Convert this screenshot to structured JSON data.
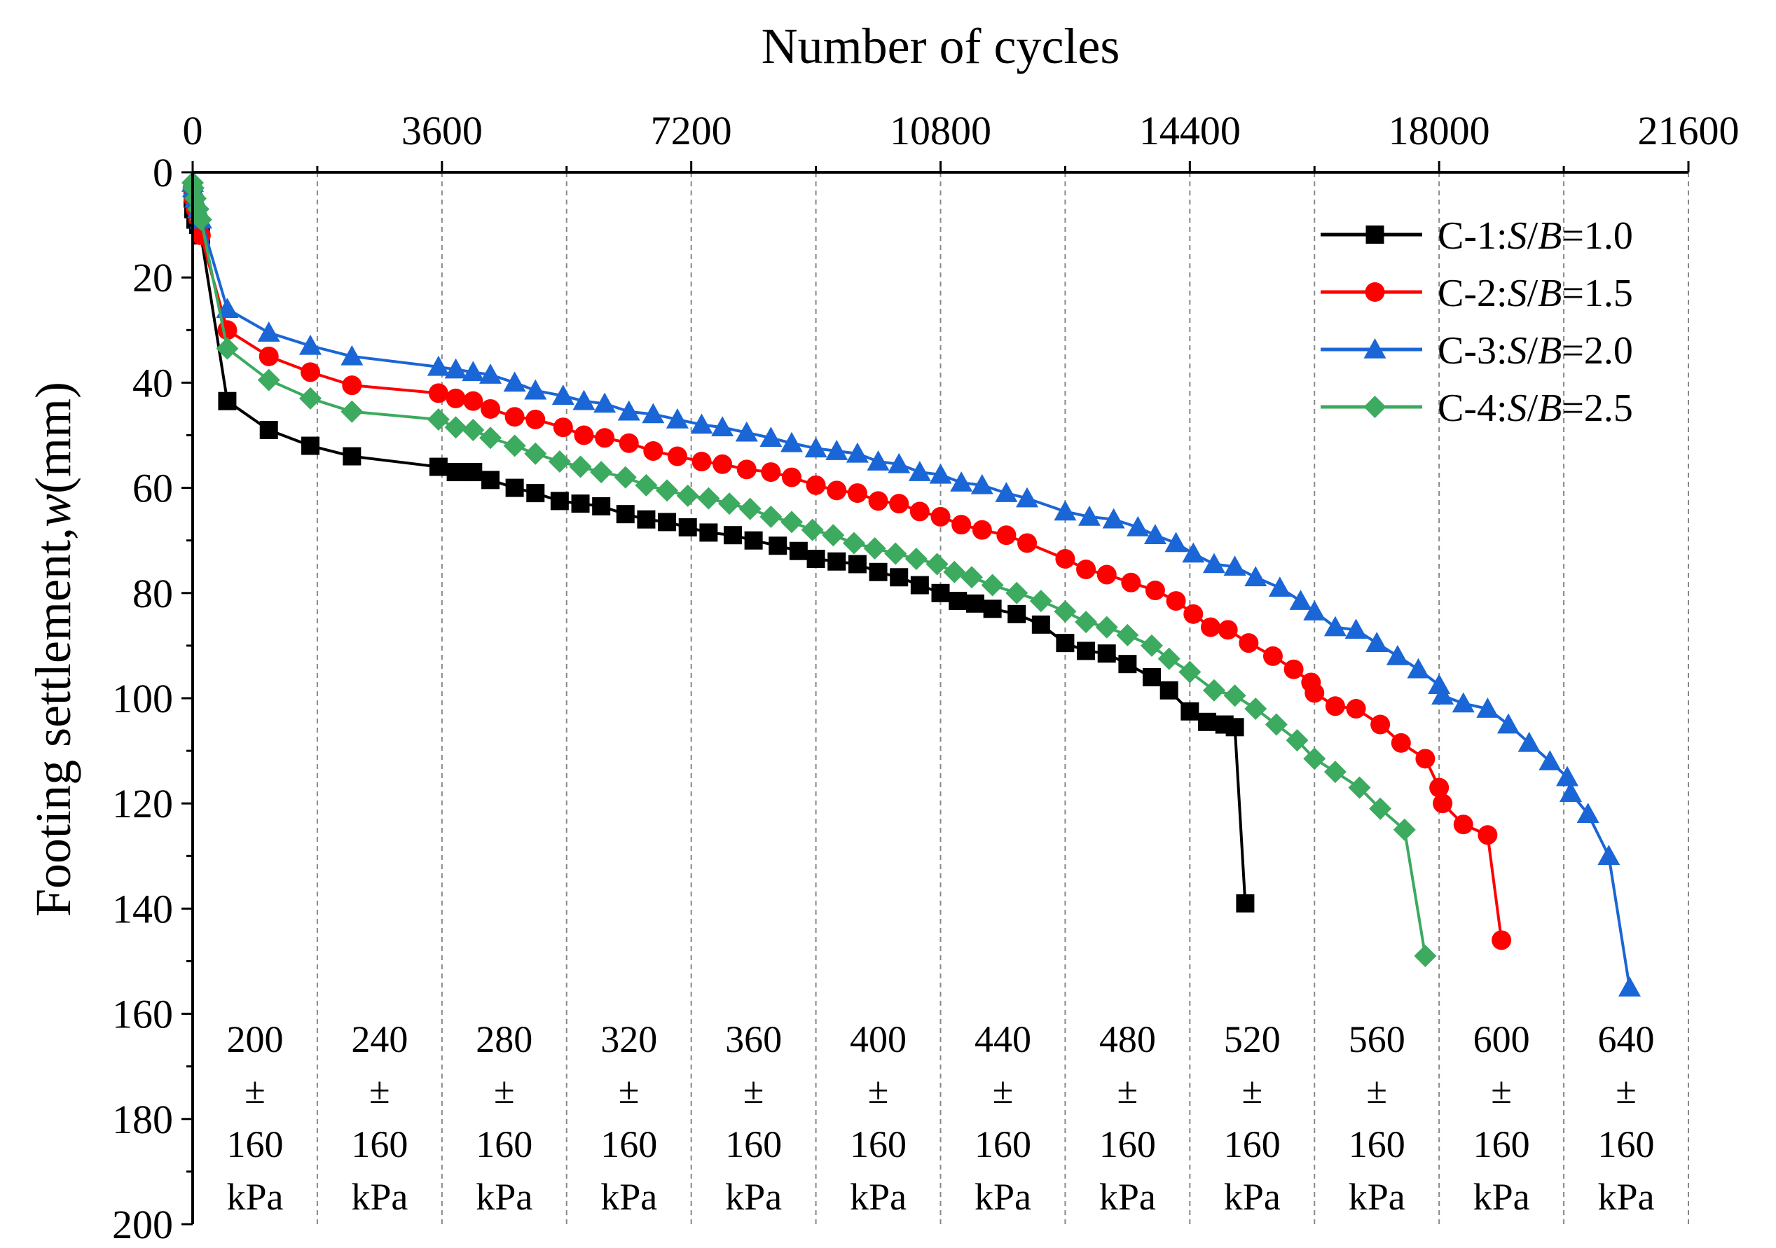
{
  "chart_data": {
    "type": "line",
    "xlabel": "Number of cycles",
    "ylabel_main": "Footing settlement,",
    "ylabel_var": "w",
    "ylabel_unit": "(mm)",
    "xlim": [
      0,
      21600
    ],
    "ylim": [
      0,
      200
    ],
    "y_inverted": true,
    "x_axis_position": "top",
    "xticks": [
      0,
      3600,
      7200,
      10800,
      14400,
      18000,
      21600
    ],
    "yticks": [
      0,
      20,
      40,
      60,
      80,
      100,
      120,
      140,
      160,
      180,
      200
    ],
    "stage_boundaries": [
      1800,
      3600,
      5400,
      7200,
      9000,
      10800,
      12600,
      14400,
      16200,
      18000,
      19800,
      21600
    ],
    "legend_position": "top-right",
    "series": [
      {
        "name": "C-1",
        "ratio_label": "S/B",
        "ratio_value": "1.0",
        "color": "#000000",
        "marker": "square",
        "x": [
          0,
          10,
          40,
          80,
          120,
          500,
          1100,
          1700,
          2300,
          3550,
          3800,
          4050,
          4300,
          4650,
          4950,
          5300,
          5600,
          5900,
          6250,
          6550,
          6850,
          7150,
          7450,
          7800,
          8100,
          8450,
          8750,
          9000,
          9300,
          9600,
          9900,
          10200,
          10500,
          10800,
          11050,
          11300,
          11550,
          11900,
          12250,
          12600,
          12900,
          13200,
          13500,
          13850,
          14100,
          14400,
          14650,
          14900,
          15050,
          15200
        ],
        "y": [
          5,
          7,
          9,
          10,
          12,
          43.5,
          49,
          52,
          54,
          56,
          57,
          57,
          58.5,
          60,
          61,
          62.5,
          63,
          63.5,
          65,
          66,
          66.5,
          67.5,
          68.5,
          69,
          70,
          71,
          72,
          73.5,
          74,
          74.5,
          76,
          77,
          78.5,
          80,
          81.5,
          82,
          83,
          84,
          86,
          89.5,
          91,
          91.5,
          93.5,
          96,
          98.5,
          102.5,
          104.5,
          105,
          105.5,
          139
        ]
      },
      {
        "name": "C-2",
        "ratio_label": "S/B",
        "ratio_value": "1.5",
        "color": "#ff0000",
        "marker": "circle",
        "x": [
          0,
          10,
          40,
          80,
          120,
          500,
          1100,
          1700,
          2300,
          3550,
          3800,
          4050,
          4300,
          4650,
          4950,
          5350,
          5650,
          5950,
          6300,
          6650,
          7000,
          7350,
          7650,
          8000,
          8350,
          8650,
          9000,
          9300,
          9600,
          9900,
          10200,
          10500,
          10800,
          11100,
          11400,
          11750,
          12050,
          12600,
          12900,
          13200,
          13550,
          13900,
          14200,
          14450,
          14700,
          14950,
          15250,
          15600,
          15900,
          16150,
          16200,
          16500,
          16800,
          17150,
          17450,
          17800,
          18000,
          18050,
          18350,
          18700,
          18900
        ],
        "y": [
          3,
          5,
          7,
          9,
          12,
          30,
          35,
          38,
          40.5,
          42,
          43,
          43.5,
          45,
          46.5,
          47,
          48.5,
          50,
          50.5,
          51.5,
          53,
          54,
          55,
          55.5,
          56.5,
          57,
          58,
          59.5,
          60.5,
          61,
          62.5,
          63,
          64.5,
          65.5,
          67,
          68,
          69,
          70.5,
          73.5,
          75.5,
          76.5,
          78,
          79.5,
          81.5,
          84,
          86.5,
          87,
          89.5,
          92,
          94.5,
          97,
          99,
          101.5,
          102,
          105,
          108.5,
          111.5,
          117,
          120,
          124,
          126,
          146
        ]
      },
      {
        "name": "C-3",
        "ratio_label": "S/B",
        "ratio_value": "2.0",
        "color": "#1a66d6",
        "marker": "triangle",
        "x": [
          0,
          10,
          40,
          80,
          120,
          500,
          1100,
          1700,
          2300,
          3550,
          3800,
          4050,
          4300,
          4650,
          4950,
          5350,
          5650,
          5950,
          6300,
          6650,
          7000,
          7350,
          7650,
          8000,
          8350,
          8650,
          9000,
          9300,
          9600,
          9900,
          10200,
          10500,
          10800,
          11100,
          11400,
          11750,
          12050,
          12600,
          12950,
          13300,
          13650,
          13900,
          14200,
          14450,
          14750,
          15050,
          15350,
          15700,
          16000,
          16200,
          16500,
          16800,
          17100,
          17400,
          17700,
          18000,
          18050,
          18350,
          18700,
          19000,
          19300,
          19600,
          19850,
          19900,
          20150,
          20450,
          20750
        ],
        "y": [
          2,
          3,
          5,
          7,
          9,
          26,
          30.5,
          33,
          35,
          37,
          37.5,
          38,
          38.5,
          40,
          41.5,
          42.5,
          43.5,
          44,
          45.5,
          46,
          47,
          48,
          48.5,
          49.5,
          50.5,
          51.5,
          52.5,
          53,
          53.5,
          55,
          55.5,
          57,
          57.5,
          59,
          59.5,
          61,
          62,
          64.5,
          65.5,
          66,
          67.5,
          69,
          70.5,
          72.5,
          74.5,
          75,
          77,
          79,
          81.5,
          83.5,
          86.5,
          87,
          89.5,
          92,
          94.5,
          97.5,
          99.5,
          101,
          102,
          105,
          108.5,
          112,
          115,
          118,
          122,
          130,
          155
        ]
      },
      {
        "name": "C-4",
        "ratio_label": "S/B",
        "ratio_value": "2.5",
        "color": "#3caa5f",
        "marker": "diamond",
        "x": [
          0,
          10,
          40,
          80,
          120,
          500,
          1100,
          1700,
          2300,
          3550,
          3800,
          4050,
          4300,
          4650,
          4950,
          5300,
          5600,
          5900,
          6250,
          6550,
          6850,
          7150,
          7450,
          7750,
          8050,
          8350,
          8650,
          8950,
          9250,
          9550,
          9850,
          10150,
          10450,
          10750,
          11000,
          11250,
          11550,
          11900,
          12250,
          12600,
          12900,
          13200,
          13500,
          13850,
          14100,
          14400,
          14750,
          15050,
          15350,
          15650,
          15950,
          16200,
          16500,
          16850,
          17150,
          17500,
          17800
        ],
        "y": [
          2,
          3,
          5,
          7,
          9,
          33.5,
          39.5,
          43,
          45.5,
          47,
          48.5,
          49,
          50.5,
          52,
          53.5,
          55,
          56,
          57,
          58,
          59.5,
          60.5,
          61.5,
          62,
          63,
          64,
          65.5,
          66.5,
          68,
          69,
          70.5,
          71.5,
          72.5,
          73.5,
          74.5,
          76,
          77,
          78.5,
          80,
          81.5,
          83.5,
          85.5,
          86.5,
          88,
          90,
          92.5,
          95,
          98.5,
          99.5,
          102,
          105,
          108,
          111.5,
          114,
          117,
          121,
          125,
          149
        ]
      }
    ],
    "stage_labels": [
      {
        "top": "200",
        "mid": "±",
        "bottom": "160",
        "unit": "kPa"
      },
      {
        "top": "240",
        "mid": "±",
        "bottom": "160",
        "unit": "kPa"
      },
      {
        "top": "280",
        "mid": "±",
        "bottom": "160",
        "unit": "kPa"
      },
      {
        "top": "320",
        "mid": "±",
        "bottom": "160",
        "unit": "kPa"
      },
      {
        "top": "360",
        "mid": "±",
        "bottom": "160",
        "unit": "kPa"
      },
      {
        "top": "400",
        "mid": "±",
        "bottom": "160",
        "unit": "kPa"
      },
      {
        "top": "440",
        "mid": "±",
        "bottom": "160",
        "unit": "kPa"
      },
      {
        "top": "480",
        "mid": "±",
        "bottom": "160",
        "unit": "kPa"
      },
      {
        "top": "520",
        "mid": "±",
        "bottom": "160",
        "unit": "kPa"
      },
      {
        "top": "560",
        "mid": "±",
        "bottom": "160",
        "unit": "kPa"
      },
      {
        "top": "600",
        "mid": "±",
        "bottom": "160",
        "unit": "kPa"
      },
      {
        "top": "640",
        "mid": "±",
        "bottom": "160",
        "unit": "kPa"
      }
    ]
  }
}
